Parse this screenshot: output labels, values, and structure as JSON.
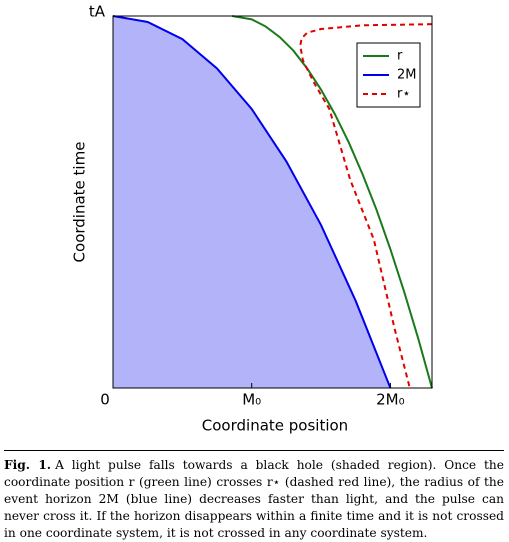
{
  "chart_data": {
    "type": "line",
    "xlabel": "Coordinate position",
    "ylabel": "Coordinate time",
    "xlim": [
      0,
      2.3
    ],
    "ylim": [
      0,
      1
    ],
    "xticks": [
      {
        "value": 0,
        "label": "0"
      },
      {
        "value": 1,
        "label": "M₀"
      },
      {
        "value": 2,
        "label": "2M₀"
      }
    ],
    "yticks": [
      {
        "value": 0,
        "label": "0"
      },
      {
        "value": 1,
        "label": "tA"
      }
    ],
    "legend": "upper right",
    "series": [
      {
        "name": "r",
        "color": "#1a7a1a",
        "dash": false,
        "x": [
          0.86,
          1.0,
          1.1,
          1.2,
          1.3,
          1.4,
          1.5,
          1.6,
          1.7,
          1.8,
          1.9,
          2.0,
          2.1,
          2.2,
          2.3
        ],
        "values": [
          1,
          0.991,
          0.972,
          0.944,
          0.907,
          0.859,
          0.802,
          0.736,
          0.66,
          0.574,
          0.479,
          0.373,
          0.258,
          0.134,
          0
        ]
      },
      {
        "name": "2M",
        "color": "#0000ee",
        "dash": false,
        "fill_color": "#b3b3fa",
        "x": [
          0,
          0.25,
          0.5,
          0.75,
          1,
          1.25,
          1.5,
          1.75,
          2
        ],
        "values": [
          1,
          0.984,
          0.938,
          0.859,
          0.75,
          0.609,
          0.438,
          0.234,
          0
        ]
      },
      {
        "name": "r⋆",
        "color": "#e00000",
        "dash": true,
        "x": [
          2.3,
          1.8,
          1.5,
          1.4,
          1.36,
          1.35,
          1.37,
          1.45,
          1.56,
          1.71,
          1.88,
          2.03,
          2.14
        ],
        "values": [
          0.978,
          0.975,
          0.965,
          0.955,
          0.94,
          0.92,
          0.88,
          0.82,
          0.75,
          0.56,
          0.4,
          0.16,
          0
        ]
      }
    ]
  },
  "caption": {
    "label": "Fig. 1.",
    "text": "A light pulse falls towards a black hole (shaded region). Once the coordinate position r (green line) crosses r⋆ (dashed red line), the radius of the event horizon 2M (blue line) decreases faster than light, and the pulse can never cross it. If the horizon disappears within a finite time and it is not crossed in one coordinate system, it is not crossed in any coordinate system."
  }
}
